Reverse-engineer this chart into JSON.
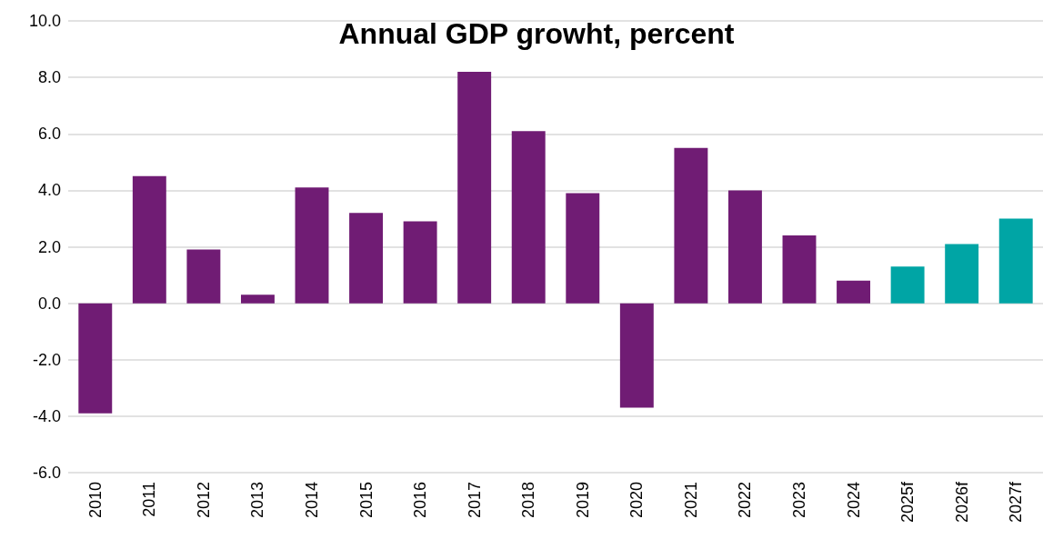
{
  "chart_data": {
    "type": "bar",
    "title": "Annual GDP growht, percent",
    "categories": [
      "2010",
      "2011",
      "2012",
      "2013",
      "2014",
      "2015",
      "2016",
      "2017",
      "2018",
      "2019",
      "2020",
      "2021",
      "2022",
      "2023",
      "2024",
      "2025f",
      "2026f",
      "2027f"
    ],
    "values": [
      -3.9,
      4.5,
      1.9,
      0.3,
      4.1,
      3.2,
      2.9,
      8.2,
      6.1,
      3.9,
      -3.7,
      5.5,
      4.0,
      2.4,
      0.8,
      1.3,
      2.1,
      3.0
    ],
    "colors": [
      "#701c74",
      "#701c74",
      "#701c74",
      "#701c74",
      "#701c74",
      "#701c74",
      "#701c74",
      "#701c74",
      "#701c74",
      "#701c74",
      "#701c74",
      "#701c74",
      "#701c74",
      "#701c74",
      "#701c74",
      "#00a5a5",
      "#00a5a5",
      "#00a5a5"
    ],
    "ylim": [
      -6,
      10
    ],
    "yticks": [
      {
        "value": -6,
        "label": "-6.0"
      },
      {
        "value": -4,
        "label": "-4.0"
      },
      {
        "value": -2,
        "label": "-2.0"
      },
      {
        "value": 0,
        "label": "0.0"
      },
      {
        "value": 2,
        "label": "2.0"
      },
      {
        "value": 4,
        "label": "4.0"
      },
      {
        "value": 6,
        "label": "6.0"
      },
      {
        "value": 8,
        "label": "8.0"
      },
      {
        "value": 10,
        "label": "10.0"
      }
    ],
    "grid": "y"
  }
}
